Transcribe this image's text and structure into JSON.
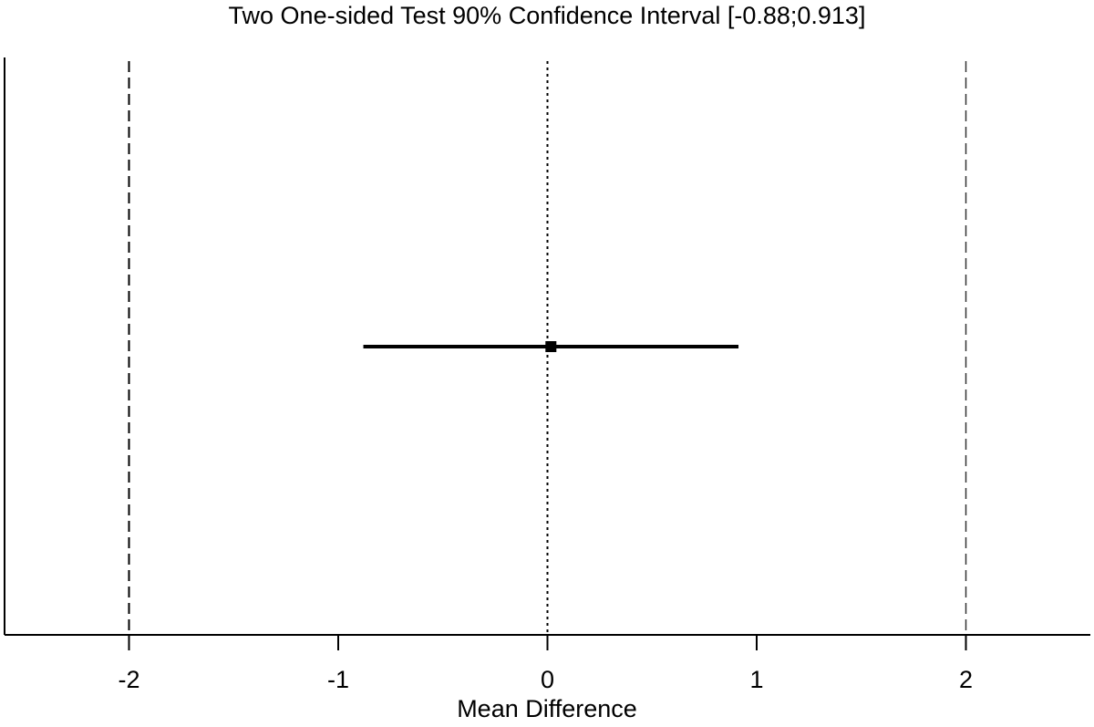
{
  "chart_data": {
    "type": "scatter",
    "subtype": "forest-interval",
    "title": "Two One-sided Test 90% Confidence Interval [-0.88;0.913]",
    "xlabel": "Mean Difference",
    "ylabel": "",
    "xlim": [
      -2.6,
      2.6
    ],
    "x_ticks": [
      -2,
      -1,
      0,
      1,
      2
    ],
    "x_tick_labels": [
      "-2",
      "-1",
      "0",
      "1",
      "2"
    ],
    "grid": false,
    "point_estimate": 0.0165,
    "ci_lower": -0.88,
    "ci_upper": 0.913,
    "confidence_level": 0.9,
    "equivalence_bounds": [
      -2,
      2
    ],
    "reference_line": 0,
    "colors": {
      "line": "#000000",
      "background": "#ffffff"
    }
  },
  "labels": {
    "title": "Two One-sided Test 90% Confidence Interval [-0.88;0.913]",
    "xlabel": "Mean Difference",
    "ticks": [
      "-2",
      "-1",
      "0",
      "1",
      "2"
    ]
  }
}
